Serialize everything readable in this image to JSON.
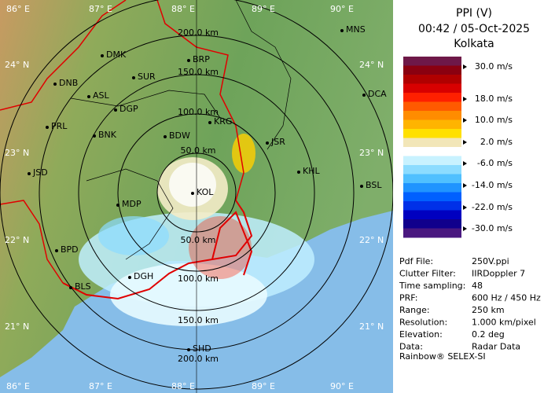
{
  "panel": {
    "title": "PPI (V)",
    "time": "00:42 / 05-Oct-2025",
    "site": "Kolkata",
    "scale_labels": [
      "30.0 m/s",
      "18.0 m/s",
      "10.0 m/s",
      "2.0 m/s",
      "-6.0 m/s",
      "-14.0 m/s",
      "-22.0 m/s",
      "-30.0 m/s"
    ],
    "scale_colors": [
      "#6e1848",
      "#8a0010",
      "#b00000",
      "#d80000",
      "#ff2000",
      "#ff5a00",
      "#ff8c00",
      "#ffb400",
      "#ffe000",
      "#f2e6b8",
      "#ffffff",
      "#c8f2ff",
      "#8cdcff",
      "#50c0ff",
      "#2094ff",
      "#0060ff",
      "#0030e8",
      "#0000c0",
      "#10008c",
      "#4a1880"
    ],
    "info": [
      [
        "Pdf File:",
        "250V.ppi"
      ],
      [
        "Clutter Filter:",
        "IIRDoppler 7"
      ],
      [
        "Time sampling:",
        "48"
      ],
      [
        "PRF:",
        "600 Hz / 450 Hz"
      ],
      [
        "Range:",
        "250 km"
      ],
      [
        "Resolution:",
        "1.000 km/pixel"
      ],
      [
        "Elevation:",
        "0.2 deg"
      ],
      [
        "Data:",
        "Radar Data"
      ]
    ],
    "footer": "Rainbow® SELEX-SI"
  },
  "map": {
    "lon_labels": [
      "86° E",
      "87° E",
      "88° E",
      "89° E",
      "90° E"
    ],
    "lat_labels": [
      "24° N",
      "23° N",
      "22° N",
      "21° N"
    ],
    "ring_labels": [
      "200.0 km",
      "150.0 km",
      "100.0 km",
      "50.0 km",
      "50.0 km",
      "100.0 km",
      "150.0 km",
      "200.0 km"
    ],
    "cities": [
      "MNS",
      "DMK",
      "BRP",
      "DNB",
      "SUR",
      "ASL",
      "DCA",
      "DGP",
      "KRG",
      "PRL",
      "BNK",
      "BDW",
      "JSR",
      "KHL",
      "JSD",
      "BSL",
      "KOL",
      "MDP",
      "BPD",
      "DGH",
      "BLS",
      "SHD"
    ]
  }
}
